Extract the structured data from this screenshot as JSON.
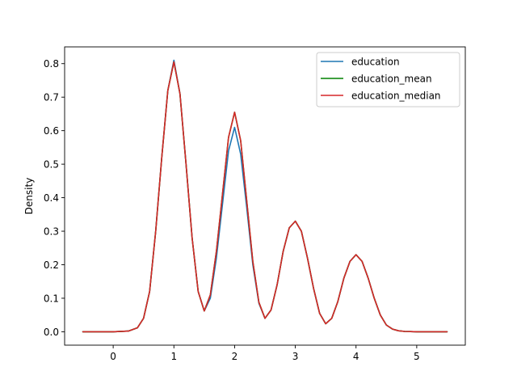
{
  "chart_data": {
    "type": "line",
    "title": "",
    "xlabel": "",
    "ylabel": "Density",
    "xlim": [
      -0.8,
      5.8
    ],
    "ylim": [
      -0.04,
      0.85
    ],
    "xticks": [
      0,
      1,
      2,
      3,
      4,
      5
    ],
    "yticks": [
      0.0,
      0.1,
      0.2,
      0.3,
      0.4,
      0.5,
      0.6,
      0.7,
      0.8
    ],
    "xtick_labels": [
      "0",
      "1",
      "2",
      "3",
      "4",
      "5"
    ],
    "ytick_labels": [
      "0.0",
      "0.1",
      "0.2",
      "0.3",
      "0.4",
      "0.5",
      "0.6",
      "0.7",
      "0.8"
    ],
    "grid": false,
    "legend_position": "top-right",
    "x": [
      -0.5,
      -0.25,
      0.0,
      0.25,
      0.4,
      0.5,
      0.6,
      0.7,
      0.8,
      0.9,
      1.0,
      1.1,
      1.2,
      1.3,
      1.4,
      1.5,
      1.6,
      1.7,
      1.8,
      1.9,
      2.0,
      2.1,
      2.2,
      2.3,
      2.4,
      2.5,
      2.6,
      2.7,
      2.8,
      2.9,
      3.0,
      3.1,
      3.2,
      3.3,
      3.4,
      3.5,
      3.6,
      3.7,
      3.8,
      3.9,
      4.0,
      4.1,
      4.2,
      4.3,
      4.4,
      4.5,
      4.6,
      4.7,
      4.8,
      5.0,
      5.25,
      5.5
    ],
    "series": [
      {
        "name": "education",
        "color": "#1f77b4",
        "values": [
          0.0,
          0.0,
          0.0,
          0.002,
          0.012,
          0.04,
          0.12,
          0.3,
          0.52,
          0.72,
          0.81,
          0.71,
          0.5,
          0.28,
          0.12,
          0.062,
          0.1,
          0.22,
          0.38,
          0.54,
          0.61,
          0.53,
          0.37,
          0.2,
          0.085,
          0.04,
          0.065,
          0.14,
          0.24,
          0.31,
          0.33,
          0.3,
          0.22,
          0.13,
          0.055,
          0.024,
          0.04,
          0.09,
          0.16,
          0.21,
          0.23,
          0.21,
          0.16,
          0.1,
          0.05,
          0.02,
          0.008,
          0.003,
          0.001,
          0.0,
          0.0,
          0.0
        ]
      },
      {
        "name": "education_mean",
        "color": "#008000",
        "values": [
          0.0,
          0.0,
          0.0,
          0.002,
          0.012,
          0.04,
          0.12,
          0.3,
          0.52,
          0.72,
          0.805,
          0.71,
          0.5,
          0.28,
          0.12,
          0.062,
          0.11,
          0.24,
          0.41,
          0.58,
          0.655,
          0.57,
          0.39,
          0.21,
          0.088,
          0.04,
          0.065,
          0.14,
          0.24,
          0.31,
          0.33,
          0.3,
          0.22,
          0.13,
          0.055,
          0.024,
          0.04,
          0.09,
          0.16,
          0.21,
          0.23,
          0.21,
          0.16,
          0.1,
          0.05,
          0.02,
          0.008,
          0.003,
          0.001,
          0.0,
          0.0,
          0.0
        ]
      },
      {
        "name": "education_median",
        "color": "#d62728",
        "values": [
          0.0,
          0.0,
          0.0,
          0.002,
          0.012,
          0.04,
          0.12,
          0.3,
          0.52,
          0.72,
          0.805,
          0.71,
          0.5,
          0.28,
          0.12,
          0.062,
          0.11,
          0.24,
          0.41,
          0.58,
          0.655,
          0.57,
          0.39,
          0.21,
          0.088,
          0.04,
          0.065,
          0.14,
          0.24,
          0.31,
          0.33,
          0.3,
          0.22,
          0.13,
          0.055,
          0.024,
          0.04,
          0.09,
          0.16,
          0.21,
          0.23,
          0.21,
          0.16,
          0.1,
          0.05,
          0.02,
          0.008,
          0.003,
          0.001,
          0.0,
          0.0,
          0.0
        ]
      }
    ]
  }
}
